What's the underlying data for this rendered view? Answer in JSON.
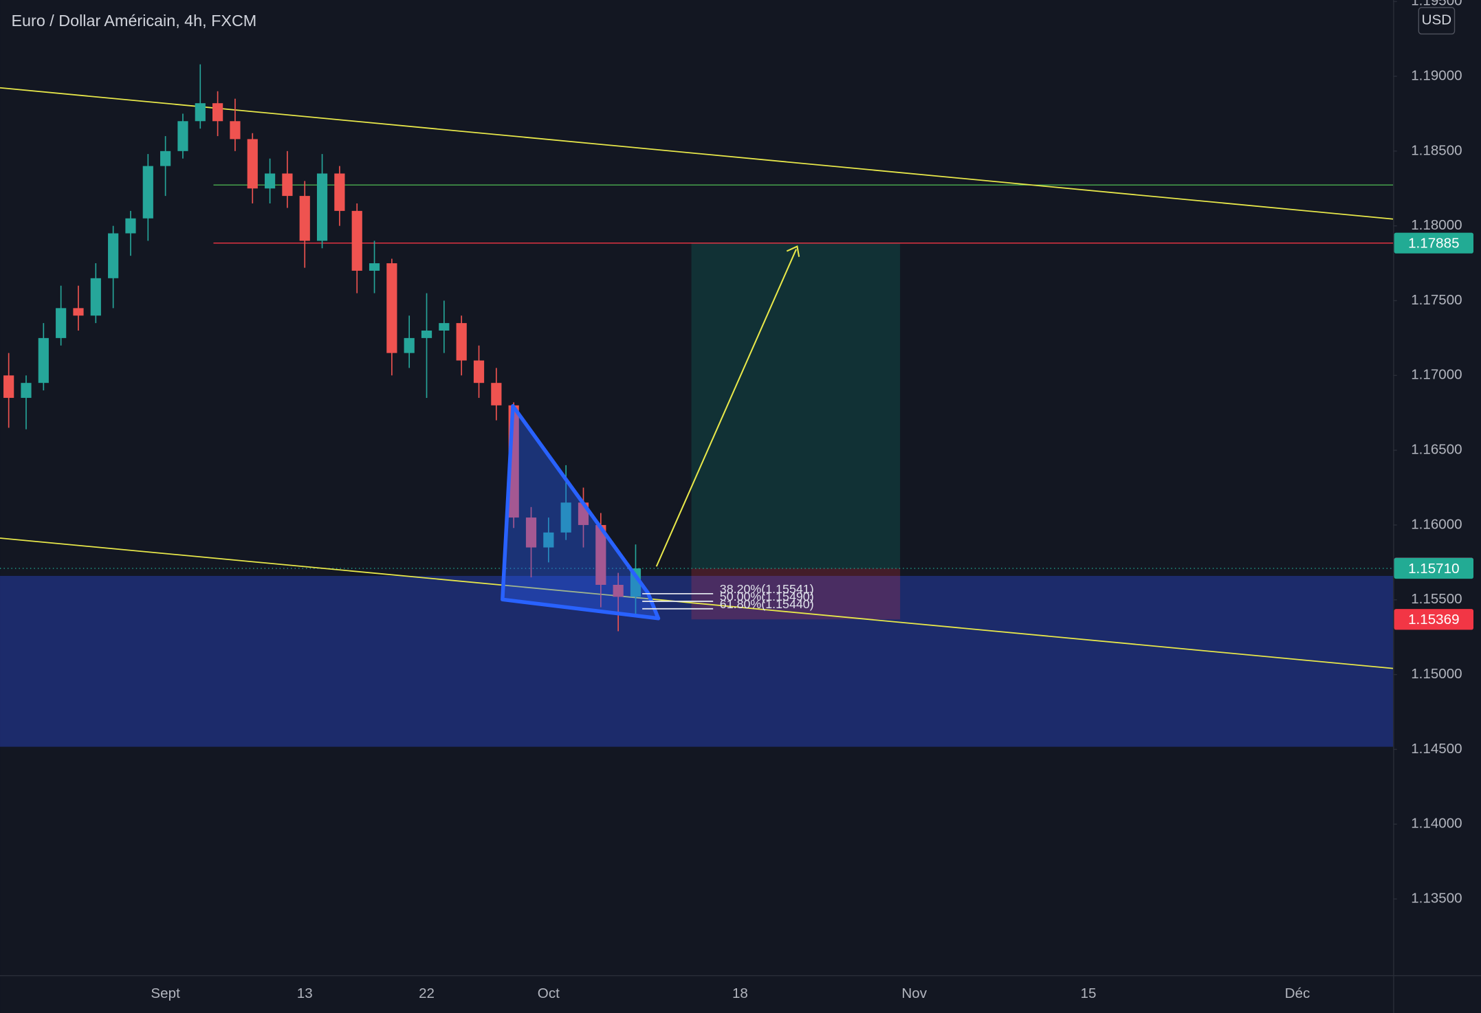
{
  "chart_data": {
    "type": "candlestick",
    "title": "Euro / Dollar Américain, 4h, FXCM",
    "currency": "USD",
    "categories": [
      null,
      null,
      null,
      null,
      null,
      null,
      null,
      null,
      null,
      "Sept",
      null,
      null,
      null,
      null,
      null,
      null,
      null,
      "13",
      null,
      null,
      null,
      null,
      null,
      null,
      "22",
      null,
      null,
      null,
      null,
      null,
      null,
      "Oct",
      null,
      null,
      null,
      null,
      null,
      null,
      null,
      null,
      null,
      null,
      "18",
      null,
      null,
      null,
      null,
      null,
      null,
      null,
      null,
      null,
      "Nov",
      null,
      null,
      null,
      null,
      null,
      null,
      null,
      null,
      null,
      "15",
      null,
      null,
      null,
      null,
      null,
      null,
      null,
      null,
      null,
      null,
      null,
      "Déc",
      null,
      null,
      null,
      null,
      null
    ],
    "open": [
      1.17,
      1.1685,
      1.1695,
      1.1725,
      1.1745,
      1.174,
      1.1765,
      1.1795,
      1.1805,
      1.184,
      1.185,
      1.187,
      1.1882,
      1.187,
      1.1858,
      1.1825,
      1.1835,
      1.182,
      1.179,
      1.1835,
      1.181,
      1.177,
      1.1775,
      1.1715,
      1.1725,
      1.173,
      1.1735,
      1.171,
      1.1695,
      1.168,
      1.1605,
      1.1585,
      1.1595,
      1.1615,
      1.16,
      1.156,
      1.1552,
      null,
      null,
      null,
      null,
      null,
      null,
      null,
      null,
      null,
      null,
      null,
      null,
      null,
      null,
      null,
      null,
      null,
      null,
      null,
      null,
      null,
      null,
      null,
      null,
      null,
      null,
      null,
      null,
      null,
      null,
      null,
      null,
      null,
      null,
      null,
      null,
      null,
      null,
      null,
      null,
      null,
      null,
      null
    ],
    "high": [
      1.1715,
      1.17,
      1.1735,
      1.176,
      1.176,
      1.1775,
      1.18,
      1.181,
      1.1848,
      1.186,
      1.1875,
      1.1908,
      1.189,
      1.1885,
      1.1862,
      1.1845,
      1.185,
      1.183,
      1.1848,
      1.184,
      1.1815,
      1.179,
      1.1778,
      1.174,
      1.1755,
      1.175,
      1.174,
      1.172,
      1.1705,
      1.1682,
      1.1612,
      1.1605,
      1.164,
      1.1625,
      1.1608,
      1.1568,
      1.1587,
      null,
      null,
      null,
      null,
      null,
      null,
      null,
      null,
      null,
      null,
      null,
      null,
      null,
      null,
      null,
      null,
      null,
      null,
      null,
      null,
      null,
      null,
      null,
      null,
      null,
      null,
      null,
      null,
      null,
      null,
      null,
      null,
      null,
      null,
      null,
      null,
      null,
      null,
      null,
      null,
      null,
      null,
      null
    ],
    "low": [
      1.1665,
      1.1664,
      1.169,
      1.172,
      1.173,
      1.1735,
      1.1745,
      1.178,
      1.179,
      1.182,
      1.1845,
      1.1865,
      1.186,
      1.185,
      1.1815,
      1.1815,
      1.1812,
      1.1772,
      1.1785,
      1.18,
      1.1755,
      1.1755,
      1.17,
      1.1705,
      1.1685,
      1.1715,
      1.17,
      1.1685,
      1.167,
      1.1598,
      1.1565,
      1.1575,
      1.159,
      1.1585,
      1.1545,
      1.1529,
      1.154,
      null,
      null,
      null,
      null,
      null,
      null,
      null,
      null,
      null,
      null,
      null,
      null,
      null,
      null,
      null,
      null,
      null,
      null,
      null,
      null,
      null,
      null,
      null,
      null,
      null,
      null,
      null,
      null,
      null,
      null,
      null,
      null,
      null,
      null,
      null,
      null,
      null,
      null,
      null,
      null,
      null,
      null,
      null
    ],
    "close": [
      1.1685,
      1.1695,
      1.1725,
      1.1745,
      1.174,
      1.1765,
      1.1795,
      1.1805,
      1.184,
      1.185,
      1.187,
      1.1882,
      1.187,
      1.1858,
      1.1825,
      1.1835,
      1.182,
      1.179,
      1.1835,
      1.181,
      1.177,
      1.1775,
      1.1715,
      1.1725,
      1.173,
      1.1735,
      1.171,
      1.1695,
      1.168,
      1.1605,
      1.1585,
      1.1595,
      1.1615,
      1.16,
      1.156,
      1.1552,
      1.1571,
      null,
      null,
      null,
      null,
      null,
      null,
      null,
      null,
      null,
      null,
      null,
      null,
      null,
      null,
      null,
      null,
      null,
      null,
      null,
      null,
      null,
      null,
      null,
      null,
      null,
      null,
      null,
      null,
      null,
      null,
      null,
      null,
      null,
      null,
      null,
      null,
      null,
      null,
      null,
      null,
      null,
      null,
      null
    ],
    "up_color": "#26a69a",
    "down_color": "#ef5350",
    "ylim": [
      1.1299,
      1.1951
    ],
    "yticks": [
      {
        "value": 1.135,
        "label": "1.13500"
      },
      {
        "value": 1.14,
        "label": "1.14000"
      },
      {
        "value": 1.145,
        "label": "1.14500"
      },
      {
        "value": 1.15,
        "label": "1.15000"
      },
      {
        "value": 1.155,
        "label": "1.15500"
      },
      {
        "value": 1.16,
        "label": "1.16000"
      },
      {
        "value": 1.165,
        "label": "1.16500"
      },
      {
        "value": 1.17,
        "label": "1.17000"
      },
      {
        "value": 1.175,
        "label": "1.17500"
      },
      {
        "value": 1.18,
        "label": "1.18000"
      },
      {
        "value": 1.185,
        "label": "1.18500"
      },
      {
        "value": 1.19,
        "label": "1.19000"
      },
      {
        "value": 1.195,
        "label": "1.19500"
      }
    ],
    "grid": false,
    "price_labels": [
      {
        "value": 1.17885,
        "color": "#22ab94"
      },
      {
        "value": 1.15712,
        "color": "#787b86"
      },
      {
        "value": 1.1571,
        "label": "1.15710",
        "color": "#22ab94"
      },
      {
        "value": 1.15369,
        "color": "#f23645"
      }
    ],
    "fib_levels": [
      {
        "value": 1.15541,
        "label": "38.20%(1.15541)"
      },
      {
        "value": 1.1549,
        "label": "50.00%(1.15490)"
      },
      {
        "value": 1.1544,
        "label": "61.80%(1.15440)"
      }
    ]
  }
}
